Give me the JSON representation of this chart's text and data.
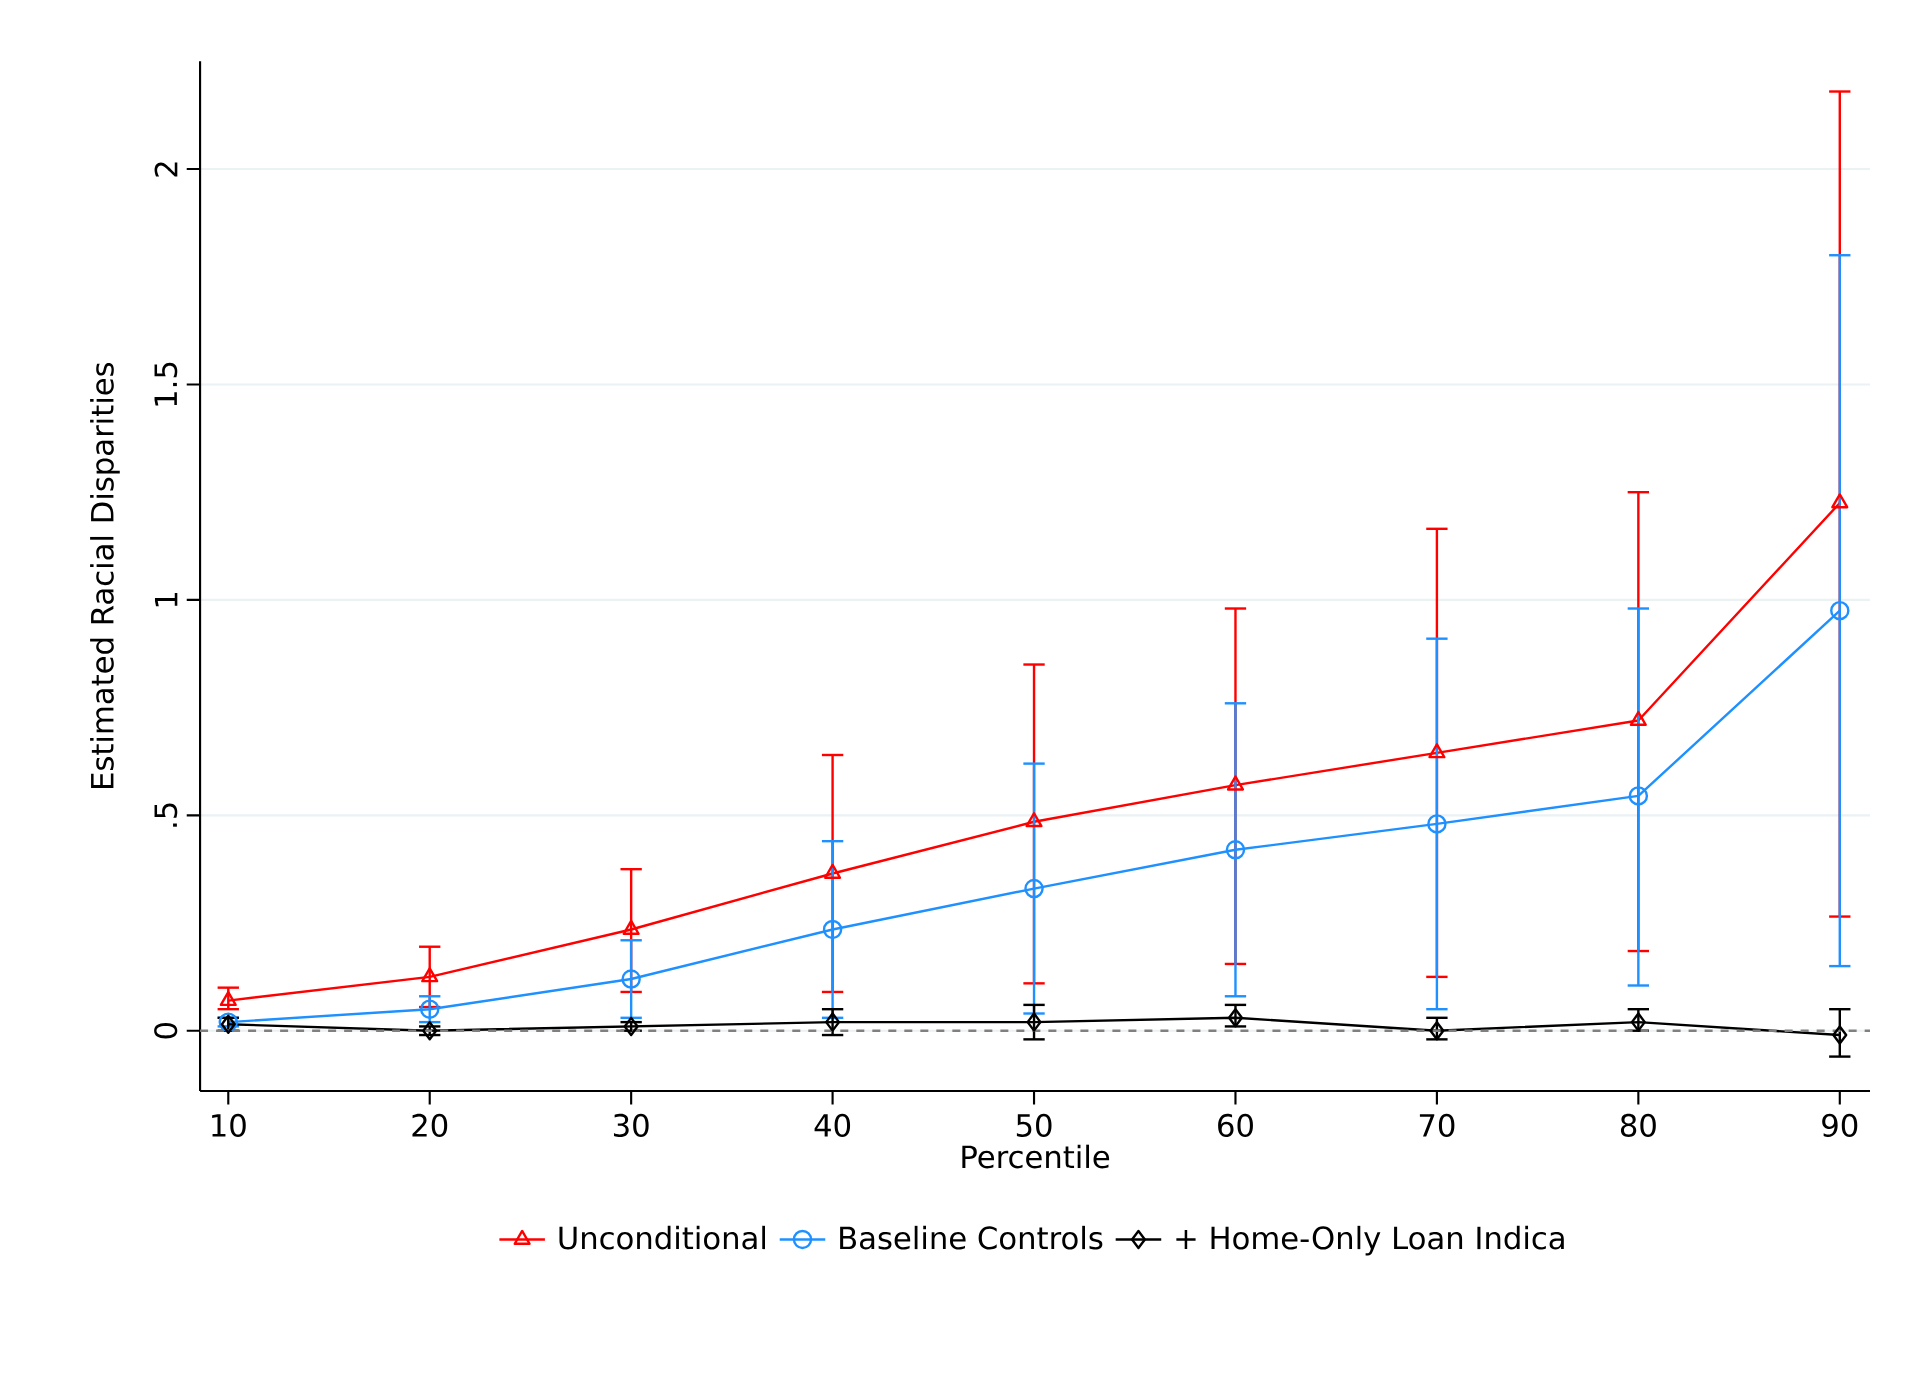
{
  "chart_data": {
    "type": "line",
    "xlabel": "Percentile",
    "ylabel": "Estimated Racial Disparities",
    "x": [
      10,
      20,
      30,
      40,
      50,
      60,
      70,
      80,
      90
    ],
    "series": [
      {
        "name": "Unconditional",
        "color": "#ff0000",
        "marker": "triangle",
        "values": [
          0.07,
          0.125,
          0.235,
          0.365,
          0.485,
          0.57,
          0.645,
          0.72,
          1.225
        ],
        "errors": [
          [
            0.05,
            0.1
          ],
          [
            0.055,
            0.195
          ],
          [
            0.09,
            0.375
          ],
          [
            0.09,
            0.64
          ],
          [
            0.11,
            0.85
          ],
          [
            0.155,
            0.98
          ],
          [
            0.125,
            1.165
          ],
          [
            0.185,
            1.25
          ],
          [
            0.265,
            2.18
          ]
        ]
      },
      {
        "name": "Baseline Controls",
        "color": "#1e90ff",
        "marker": "circle",
        "values": [
          0.02,
          0.05,
          0.12,
          0.235,
          0.33,
          0.42,
          0.48,
          0.545,
          0.975
        ],
        "errors": [
          [
            0.01,
            0.03
          ],
          [
            0.02,
            0.08
          ],
          [
            0.03,
            0.21
          ],
          [
            0.03,
            0.44
          ],
          [
            0.04,
            0.62
          ],
          [
            0.08,
            0.76
          ],
          [
            0.05,
            0.91
          ],
          [
            0.105,
            0.98
          ],
          [
            0.15,
            1.8
          ]
        ]
      },
      {
        "name": "+ Home-Only Loan Indica",
        "color": "#000000",
        "marker": "diamond",
        "values": [
          0.015,
          0.0,
          0.01,
          0.02,
          0.02,
          0.03,
          0.0,
          0.02,
          -0.01
        ],
        "errors": [
          [
            0.0,
            0.03
          ],
          [
            -0.01,
            0.01
          ],
          [
            0.0,
            0.02
          ],
          [
            -0.01,
            0.05
          ],
          [
            -0.02,
            0.06
          ],
          [
            0.01,
            0.06
          ],
          [
            -0.02,
            0.03
          ],
          [
            0.0,
            0.05
          ],
          [
            -0.06,
            0.05
          ]
        ]
      }
    ],
    "xlim": [
      8.6,
      91.5
    ],
    "ylim": [
      -0.14,
      2.25
    ],
    "xticks": [
      10,
      20,
      30,
      40,
      50,
      60,
      70,
      80,
      90
    ],
    "yticks": [
      0,
      {
        "value": 0.5,
        "label": ".5"
      },
      1,
      1.5,
      2
    ],
    "ref_lines": [
      {
        "axis": "y",
        "value": 0,
        "color": "#808080",
        "line_style": "dashed"
      }
    ],
    "grid": "y",
    "legend": "bottom",
    "line_style": "solid"
  }
}
